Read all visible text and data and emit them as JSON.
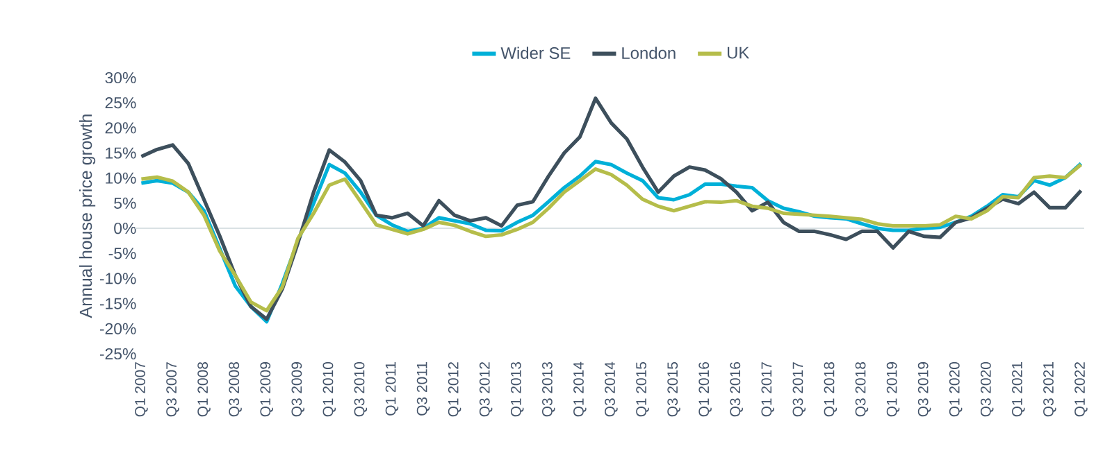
{
  "chart_data": {
    "type": "line",
    "ylabel": "Annual house price growth",
    "categories": [
      "Q1 2007",
      null,
      "Q3 2007",
      null,
      "Q1 2008",
      null,
      "Q3 2008",
      null,
      "Q1 2009",
      null,
      "Q3 2009",
      null,
      "Q1 2010",
      null,
      "Q3 2010",
      null,
      "Q1 2011",
      null,
      "Q3 2011",
      null,
      "Q1 2012",
      null,
      "Q3 2012",
      null,
      "Q1 2013",
      null,
      "Q3 2013",
      null,
      "Q1 2014",
      null,
      "Q3 2014",
      null,
      "Q1 2015",
      null,
      "Q3 2015",
      null,
      "Q1 2016",
      null,
      "Q3 2016",
      null,
      "Q1 2017",
      null,
      "Q3 2017",
      null,
      "Q1 2018",
      null,
      "Q3 2018",
      null,
      "Q1 2019",
      null,
      "Q3 2019",
      null,
      "Q1 2020",
      null,
      "Q3 2020",
      null,
      "Q1 2021",
      null,
      "Q3 2021",
      null,
      "Q1 2022"
    ],
    "series": [
      {
        "name": "Wider SE",
        "color": "#00b0d8",
        "values": [
          9.0,
          9.5,
          9.0,
          7.2,
          3.5,
          -4.0,
          -11.5,
          -15.6,
          -18.6,
          -11.0,
          -2.5,
          5.0,
          12.7,
          11.0,
          7.2,
          2.6,
          0.7,
          -0.6,
          0.0,
          2.1,
          1.5,
          0.9,
          -0.4,
          -0.5,
          1.2,
          2.6,
          5.3,
          8.1,
          10.4,
          13.3,
          12.7,
          11.0,
          9.5,
          6.1,
          5.7,
          6.7,
          8.8,
          8.8,
          8.4,
          8.1,
          5.5,
          4.0,
          3.3,
          2.4,
          2.1,
          1.9,
          0.9,
          0.0,
          -0.4,
          -0.4,
          0.0,
          0.2,
          1.2,
          2.4,
          4.4,
          6.7,
          6.3,
          9.5,
          8.6,
          10.1,
          12.9
        ]
      },
      {
        "name": "London",
        "color": "#3d4f5c",
        "values": [
          14.3,
          15.7,
          16.6,
          12.9,
          5.7,
          -1.5,
          -9.4,
          -15.6,
          -18.1,
          -12.1,
          -2.9,
          7.2,
          15.6,
          13.2,
          9.5,
          2.6,
          2.1,
          3.0,
          0.5,
          5.5,
          2.6,
          1.5,
          2.1,
          0.5,
          4.6,
          5.3,
          10.4,
          15.0,
          18.2,
          25.9,
          21.0,
          17.8,
          12.2,
          7.2,
          10.4,
          12.2,
          11.6,
          9.9,
          7.2,
          3.5,
          5.2,
          1.2,
          -0.6,
          -0.6,
          -1.3,
          -2.2,
          -0.6,
          -0.6,
          -3.9,
          -0.6,
          -1.6,
          -1.8,
          1.2,
          2.1,
          4.0,
          5.8,
          4.9,
          7.2,
          4.1,
          4.1,
          7.5
        ]
      },
      {
        "name": "UK",
        "color": "#b5bd4a",
        "values": [
          9.8,
          10.2,
          9.4,
          7.2,
          2.6,
          -4.5,
          -9.4,
          -14.7,
          -16.4,
          -11.7,
          -2.0,
          3.0,
          8.6,
          9.8,
          5.3,
          0.7,
          -0.2,
          -1.1,
          -0.2,
          1.2,
          0.6,
          -0.6,
          -1.6,
          -1.3,
          -0.2,
          1.2,
          4.0,
          7.2,
          9.5,
          11.8,
          10.7,
          8.6,
          5.8,
          4.4,
          3.5,
          4.4,
          5.3,
          5.2,
          5.5,
          4.4,
          4.0,
          3.0,
          2.8,
          2.6,
          2.4,
          2.1,
          1.8,
          0.9,
          0.5,
          0.5,
          0.5,
          0.7,
          2.4,
          1.9,
          3.5,
          6.3,
          6.1,
          10.1,
          10.4,
          10.1,
          12.7
        ]
      }
    ],
    "ylim": [
      -25,
      30
    ],
    "yticks": [
      {
        "value": -25,
        "label": "-25%"
      },
      {
        "value": -20,
        "label": "-20%"
      },
      {
        "value": -15,
        "label": "-15%"
      },
      {
        "value": -10,
        "label": "-10%"
      },
      {
        "value": -5,
        "label": "-5%"
      },
      {
        "value": 0,
        "label": "0%"
      },
      {
        "value": 5,
        "label": "5%"
      },
      {
        "value": 10,
        "label": "10%"
      },
      {
        "value": 15,
        "label": "15%"
      },
      {
        "value": 20,
        "label": "20%"
      },
      {
        "value": 25,
        "label": "25%"
      },
      {
        "value": 30,
        "label": "30%"
      }
    ],
    "ref_lines": [
      {
        "axis": "y",
        "value": 0,
        "color": "#d9e1e4"
      }
    ],
    "legend": "top",
    "marker": "none",
    "line_style": "solid",
    "grid": false
  }
}
